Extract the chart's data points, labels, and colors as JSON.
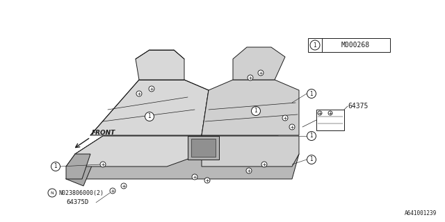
{
  "bg_color": "#ffffff",
  "line_color": "#1a1a1a",
  "line_width": 0.7,
  "fig_width": 6.4,
  "fig_height": 3.2,
  "dpi": 100,
  "label_M000268": "M000268",
  "label_64375": "64375",
  "label_64375D": "64375D",
  "label_N023806000": "N023806000(2)",
  "label_front": "FRONT",
  "footer": "A641001239",
  "gray_fill": "#d8d8d8",
  "seat_gray": "#c8c8c8"
}
